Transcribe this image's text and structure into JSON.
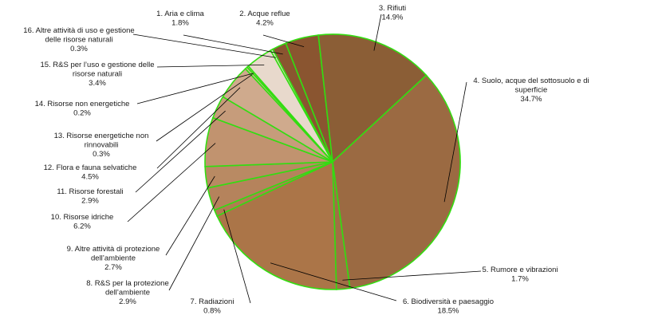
{
  "chart_data": {
    "type": "pie",
    "title": "",
    "legend": "none",
    "colors": {
      "border": "#33dd11",
      "leader": "#000000"
    },
    "slices": [
      {
        "lines": [
          "1. Aria e clima"
        ],
        "value_label": "1.8%",
        "value": 1.8,
        "color": "#8a5530"
      },
      {
        "lines": [
          "2. Acque reflue"
        ],
        "value_label": "4.2%",
        "value": 4.2,
        "color": "#8a5530"
      },
      {
        "lines": [
          "3. Rifiuti"
        ],
        "value_label": "14.9%",
        "value": 14.9,
        "color": "#8b5e36"
      },
      {
        "lines": [
          "4. Suolo, acque del sottosuolo e di",
          "superficie"
        ],
        "value_label": "34.7%",
        "value": 34.7,
        "color": "#9b6a42"
      },
      {
        "lines": [
          "5. Rumore e vibrazioni"
        ],
        "value_label": "1.7%",
        "value": 1.7,
        "color": "#a06f45"
      },
      {
        "lines": [
          "6. Biodiversità e paesaggio"
        ],
        "value_label": "18.5%",
        "value": 18.5,
        "color": "#ab7548"
      },
      {
        "lines": [
          "7. Radiazioni"
        ],
        "value_label": "0.8%",
        "value": 0.8,
        "color": "#b07c52"
      },
      {
        "lines": [
          "8. R&S per la protezione",
          "dell’ambiente"
        ],
        "value_label": "2.9%",
        "value": 2.9,
        "color": "#b5835c"
      },
      {
        "lines": [
          "9. Altre attività di protezione",
          "dell’ambiente"
        ],
        "value_label": "2.7%",
        "value": 2.7,
        "color": "#b98a63"
      },
      {
        "lines": [
          "10. Risorse idriche"
        ],
        "value_label": "6.2%",
        "value": 6.2,
        "color": "#c1936f"
      },
      {
        "lines": [
          "11. Risorse forestali"
        ],
        "value_label": "2.9%",
        "value": 2.9,
        "color": "#c69c7b"
      },
      {
        "lines": [
          "12. Flora e fauna selvatiche"
        ],
        "value_label": "4.5%",
        "value": 4.5,
        "color": "#cfaa8d"
      },
      {
        "lines": [
          "13. Risorse energetiche non",
          "rinnovabili"
        ],
        "value_label": "0.3%",
        "value": 0.3,
        "color": "#d8b8a0"
      },
      {
        "lines": [
          "14. Risorse non energetiche"
        ],
        "value_label": "0.2%",
        "value": 0.2,
        "color": "#e0c6b3"
      },
      {
        "lines": [
          "15. R&S per l’uso e gestione delle",
          "risorse naturali"
        ],
        "value_label": "3.4%",
        "value": 3.4,
        "color": "#e8d9cc"
      },
      {
        "lines": [
          "16. Altre attività di uso e gestione",
          "delle risorse naturali"
        ],
        "value_label": "0.3%",
        "value": 0.3,
        "color": "#ecdcd0"
      }
    ]
  }
}
